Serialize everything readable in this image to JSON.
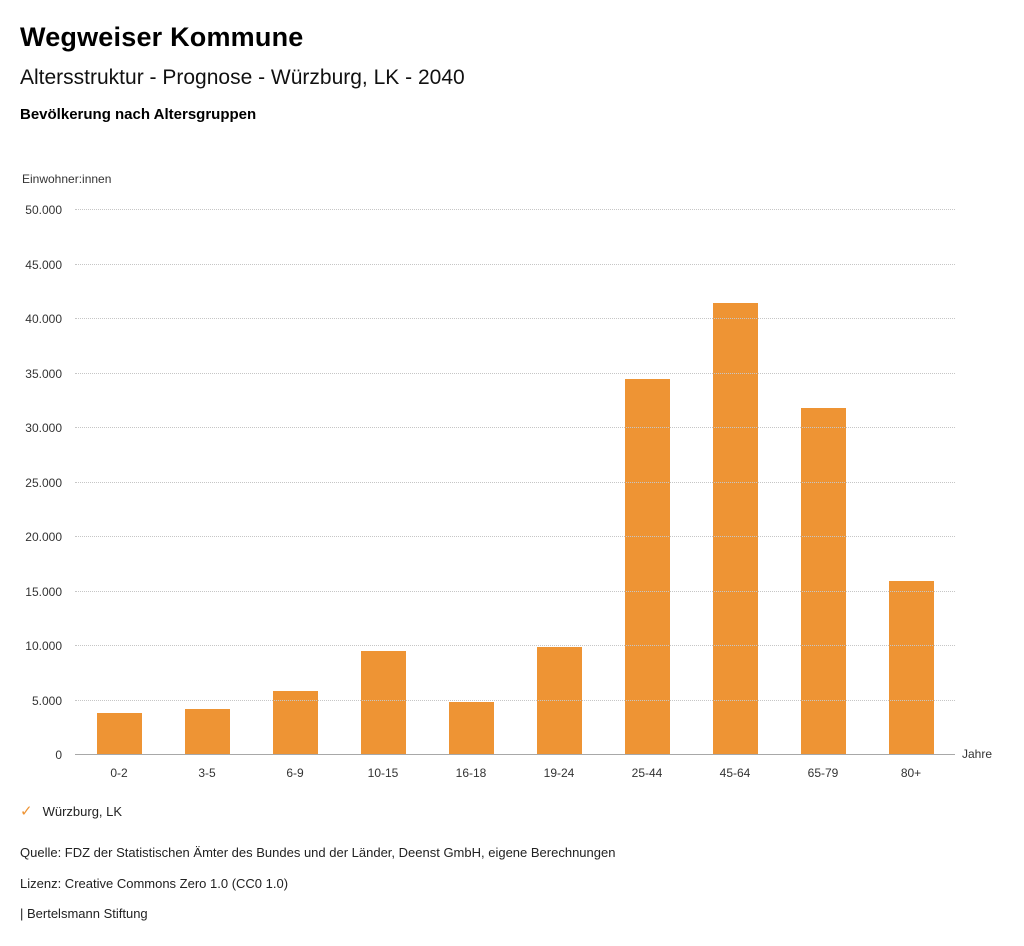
{
  "header": {
    "brand": "Wegweiser Kommune",
    "title": "Altersstruktur - Prognose - Würzburg, LK - 2040",
    "subtitle": "Bevölkerung nach Altersgruppen"
  },
  "chart_data": {
    "type": "bar",
    "title": "Bevölkerung nach Altersgruppen",
    "ylabel": "Einwohner:innen",
    "xlabel": "Jahre",
    "categories": [
      "0-2",
      "3-5",
      "6-9",
      "10-15",
      "16-18",
      "19-24",
      "25-44",
      "45-64",
      "65-79",
      "80+"
    ],
    "values": [
      3900,
      4200,
      5900,
      9500,
      4900,
      9900,
      34500,
      41500,
      31800,
      16000
    ],
    "ylim": [
      0,
      50000
    ],
    "ytick_step": 5000,
    "ytick_labels": [
      "0",
      "5.000",
      "10.000",
      "15.000",
      "20.000",
      "25.000",
      "30.000",
      "35.000",
      "40.000",
      "45.000",
      "50.000"
    ],
    "bar_color": "#EE9434",
    "grid": true,
    "legend_position": "bottom-left",
    "series_name": "Würzburg, LK"
  },
  "legend": {
    "check_glyph": "✓",
    "check_color": "#EE9434",
    "label": "Würzburg, LK"
  },
  "footer": {
    "source": "Quelle: FDZ der Statistischen Ämter des Bundes und der Länder, Deenst GmbH, eigene Berechnungen",
    "license": "Lizenz: Creative Commons Zero 1.0 (CC0 1.0)",
    "attribution": "| Bertelsmann Stiftung"
  }
}
